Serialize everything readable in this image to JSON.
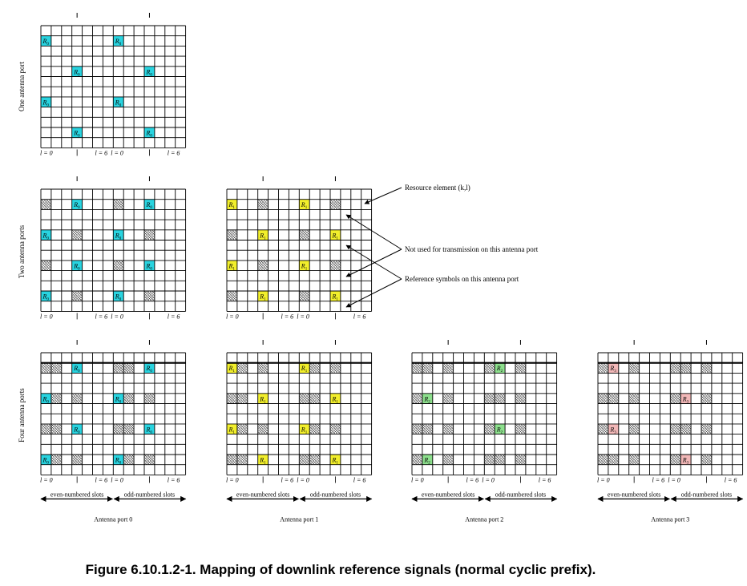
{
  "caption": "Figure 6.10.1.2-1. Mapping of downlink reference signals (normal cyclic prefix).",
  "row_labels": [
    "One antenna port",
    "Two antenna ports",
    "Four antenna ports"
  ],
  "axis_labels": {
    "l0": "l = 0",
    "l6": "l = 6"
  },
  "slot_labels": {
    "even": "even-numbered slots",
    "odd": "odd-numbered slots"
  },
  "port_labels": [
    "Antenna port 0",
    "Antenna port 1",
    "Antenna port 2",
    "Antenna port 3"
  ],
  "annotations": {
    "resource_element": "Resource element (k,l)",
    "not_used": "Not used for transmission on this antenna port",
    "reference_symbols": "Reference symbols on this antenna port"
  },
  "colors": {
    "R0": "#29d4e0",
    "R1": "#f2ef2c",
    "R2": "#8de08d",
    "R3": "#f2b8b8",
    "grid": "#000000"
  },
  "grids": [
    {
      "row": "One antenna port",
      "port": 0,
      "cells": [
        {
          "col": 0,
          "row": 1,
          "type": "R",
          "label": "R0"
        },
        {
          "col": 7,
          "row": 1,
          "type": "R",
          "label": "R0"
        },
        {
          "col": 3,
          "row": 4,
          "type": "R",
          "label": "R0"
        },
        {
          "col": 10,
          "row": 4,
          "type": "R",
          "label": "R0"
        },
        {
          "col": 0,
          "row": 7,
          "type": "R",
          "label": "R0"
        },
        {
          "col": 7,
          "row": 7,
          "type": "R",
          "label": "R0"
        },
        {
          "col": 3,
          "row": 10,
          "type": "R",
          "label": "R0"
        },
        {
          "col": 10,
          "row": 10,
          "type": "R",
          "label": "R0"
        }
      ]
    },
    {
      "row": "Two antenna ports",
      "port": 0,
      "cells": [
        {
          "col": 0,
          "row": 1,
          "type": "X"
        },
        {
          "col": 7,
          "row": 1,
          "type": "X"
        },
        {
          "col": 3,
          "row": 1,
          "type": "R",
          "label": "R0"
        },
        {
          "col": 10,
          "row": 1,
          "type": "R",
          "label": "R0"
        },
        {
          "col": 0,
          "row": 4,
          "type": "R",
          "label": "R0"
        },
        {
          "col": 7,
          "row": 4,
          "type": "R",
          "label": "R0"
        },
        {
          "col": 3,
          "row": 4,
          "type": "X"
        },
        {
          "col": 10,
          "row": 4,
          "type": "X"
        },
        {
          "col": 0,
          "row": 7,
          "type": "X"
        },
        {
          "col": 7,
          "row": 7,
          "type": "X"
        },
        {
          "col": 3,
          "row": 7,
          "type": "R",
          "label": "R0"
        },
        {
          "col": 10,
          "row": 7,
          "type": "R",
          "label": "R0"
        },
        {
          "col": 0,
          "row": 10,
          "type": "R",
          "label": "R0"
        },
        {
          "col": 7,
          "row": 10,
          "type": "R",
          "label": "R0"
        },
        {
          "col": 3,
          "row": 10,
          "type": "X"
        },
        {
          "col": 10,
          "row": 10,
          "type": "X"
        }
      ]
    },
    {
      "row": "Two antenna ports",
      "port": 1,
      "cells": [
        {
          "col": 0,
          "row": 1,
          "type": "R",
          "label": "R1"
        },
        {
          "col": 7,
          "row": 1,
          "type": "R",
          "label": "R1"
        },
        {
          "col": 3,
          "row": 1,
          "type": "X"
        },
        {
          "col": 10,
          "row": 1,
          "type": "X"
        },
        {
          "col": 0,
          "row": 4,
          "type": "X"
        },
        {
          "col": 7,
          "row": 4,
          "type": "X"
        },
        {
          "col": 3,
          "row": 4,
          "type": "R",
          "label": "R1"
        },
        {
          "col": 10,
          "row": 4,
          "type": "R",
          "label": "R1"
        },
        {
          "col": 0,
          "row": 7,
          "type": "R",
          "label": "R1"
        },
        {
          "col": 7,
          "row": 7,
          "type": "R",
          "label": "R1"
        },
        {
          "col": 3,
          "row": 7,
          "type": "X"
        },
        {
          "col": 10,
          "row": 7,
          "type": "X"
        },
        {
          "col": 0,
          "row": 10,
          "type": "X"
        },
        {
          "col": 7,
          "row": 10,
          "type": "X"
        },
        {
          "col": 3,
          "row": 10,
          "type": "R",
          "label": "R1"
        },
        {
          "col": 10,
          "row": 10,
          "type": "R",
          "label": "R1"
        }
      ]
    },
    {
      "row": "Four antenna ports",
      "port": 0,
      "cells": [
        {
          "col": 0,
          "row": 1,
          "type": "X"
        },
        {
          "col": 1,
          "row": 1,
          "type": "X"
        },
        {
          "col": 3,
          "row": 1,
          "type": "R",
          "label": "R0"
        },
        {
          "col": 7,
          "row": 1,
          "type": "X"
        },
        {
          "col": 8,
          "row": 1,
          "type": "X"
        },
        {
          "col": 10,
          "row": 1,
          "type": "R",
          "label": "R0"
        },
        {
          "col": 0,
          "row": 4,
          "type": "R",
          "label": "R0"
        },
        {
          "col": 1,
          "row": 4,
          "type": "X"
        },
        {
          "col": 3,
          "row": 4,
          "type": "X"
        },
        {
          "col": 7,
          "row": 4,
          "type": "R",
          "label": "R0"
        },
        {
          "col": 8,
          "row": 4,
          "type": "X"
        },
        {
          "col": 10,
          "row": 4,
          "type": "X"
        },
        {
          "col": 0,
          "row": 7,
          "type": "X"
        },
        {
          "col": 1,
          "row": 7,
          "type": "X"
        },
        {
          "col": 3,
          "row": 7,
          "type": "R",
          "label": "R0"
        },
        {
          "col": 7,
          "row": 7,
          "type": "X"
        },
        {
          "col": 8,
          "row": 7,
          "type": "X"
        },
        {
          "col": 10,
          "row": 7,
          "type": "R",
          "label": "R0"
        },
        {
          "col": 0,
          "row": 10,
          "type": "R",
          "label": "R0"
        },
        {
          "col": 1,
          "row": 10,
          "type": "X"
        },
        {
          "col": 3,
          "row": 10,
          "type": "X"
        },
        {
          "col": 7,
          "row": 10,
          "type": "R",
          "label": "R0"
        },
        {
          "col": 8,
          "row": 10,
          "type": "X"
        },
        {
          "col": 10,
          "row": 10,
          "type": "X"
        }
      ]
    },
    {
      "row": "Four antenna ports",
      "port": 1,
      "cells": [
        {
          "col": 0,
          "row": 1,
          "type": "R",
          "label": "R1"
        },
        {
          "col": 1,
          "row": 1,
          "type": "X"
        },
        {
          "col": 3,
          "row": 1,
          "type": "X"
        },
        {
          "col": 7,
          "row": 1,
          "type": "R",
          "label": "R1"
        },
        {
          "col": 8,
          "row": 1,
          "type": "X"
        },
        {
          "col": 10,
          "row": 1,
          "type": "X"
        },
        {
          "col": 0,
          "row": 4,
          "type": "X"
        },
        {
          "col": 1,
          "row": 4,
          "type": "X"
        },
        {
          "col": 3,
          "row": 4,
          "type": "R",
          "label": "R1"
        },
        {
          "col": 7,
          "row": 4,
          "type": "X"
        },
        {
          "col": 8,
          "row": 4,
          "type": "X"
        },
        {
          "col": 10,
          "row": 4,
          "type": "R",
          "label": "R1"
        },
        {
          "col": 0,
          "row": 7,
          "type": "R",
          "label": "R1"
        },
        {
          "col": 1,
          "row": 7,
          "type": "X"
        },
        {
          "col": 3,
          "row": 7,
          "type": "X"
        },
        {
          "col": 7,
          "row": 7,
          "type": "R",
          "label": "R1"
        },
        {
          "col": 8,
          "row": 7,
          "type": "X"
        },
        {
          "col": 10,
          "row": 7,
          "type": "X"
        },
        {
          "col": 0,
          "row": 10,
          "type": "X"
        },
        {
          "col": 1,
          "row": 10,
          "type": "X"
        },
        {
          "col": 3,
          "row": 10,
          "type": "R",
          "label": "R1"
        },
        {
          "col": 7,
          "row": 10,
          "type": "X"
        },
        {
          "col": 8,
          "row": 10,
          "type": "X"
        },
        {
          "col": 10,
          "row": 10,
          "type": "R",
          "label": "R1"
        }
      ]
    },
    {
      "row": "Four antenna ports",
      "port": 2,
      "cells": [
        {
          "col": 0,
          "row": 1,
          "type": "X"
        },
        {
          "col": 1,
          "row": 1,
          "type": "X"
        },
        {
          "col": 3,
          "row": 1,
          "type": "X"
        },
        {
          "col": 7,
          "row": 1,
          "type": "X"
        },
        {
          "col": 8,
          "row": 1,
          "type": "R",
          "label": "R2"
        },
        {
          "col": 10,
          "row": 1,
          "type": "X"
        },
        {
          "col": 0,
          "row": 4,
          "type": "X"
        },
        {
          "col": 1,
          "row": 4,
          "type": "R",
          "label": "R2"
        },
        {
          "col": 3,
          "row": 4,
          "type": "X"
        },
        {
          "col": 7,
          "row": 4,
          "type": "X"
        },
        {
          "col": 8,
          "row": 4,
          "type": "X"
        },
        {
          "col": 10,
          "row": 4,
          "type": "X"
        },
        {
          "col": 0,
          "row": 7,
          "type": "X"
        },
        {
          "col": 1,
          "row": 7,
          "type": "X"
        },
        {
          "col": 3,
          "row": 7,
          "type": "X"
        },
        {
          "col": 7,
          "row": 7,
          "type": "X"
        },
        {
          "col": 8,
          "row": 7,
          "type": "R",
          "label": "R2"
        },
        {
          "col": 10,
          "row": 7,
          "type": "X"
        },
        {
          "col": 0,
          "row": 10,
          "type": "X"
        },
        {
          "col": 1,
          "row": 10,
          "type": "R",
          "label": "R2"
        },
        {
          "col": 3,
          "row": 10,
          "type": "X"
        },
        {
          "col": 7,
          "row": 10,
          "type": "X"
        },
        {
          "col": 8,
          "row": 10,
          "type": "X"
        },
        {
          "col": 10,
          "row": 10,
          "type": "X"
        }
      ]
    },
    {
      "row": "Four antenna ports",
      "port": 3,
      "cells": [
        {
          "col": 0,
          "row": 1,
          "type": "X"
        },
        {
          "col": 1,
          "row": 1,
          "type": "R",
          "label": "R3"
        },
        {
          "col": 3,
          "row": 1,
          "type": "X"
        },
        {
          "col": 7,
          "row": 1,
          "type": "X"
        },
        {
          "col": 8,
          "row": 1,
          "type": "X"
        },
        {
          "col": 10,
          "row": 1,
          "type": "X"
        },
        {
          "col": 0,
          "row": 4,
          "type": "X"
        },
        {
          "col": 1,
          "row": 4,
          "type": "X"
        },
        {
          "col": 3,
          "row": 4,
          "type": "X"
        },
        {
          "col": 7,
          "row": 4,
          "type": "X"
        },
        {
          "col": 8,
          "row": 4,
          "type": "R",
          "label": "R3"
        },
        {
          "col": 10,
          "row": 4,
          "type": "X"
        },
        {
          "col": 0,
          "row": 7,
          "type": "X"
        },
        {
          "col": 1,
          "row": 7,
          "type": "R",
          "label": "R3"
        },
        {
          "col": 3,
          "row": 7,
          "type": "X"
        },
        {
          "col": 7,
          "row": 7,
          "type": "X"
        },
        {
          "col": 8,
          "row": 7,
          "type": "X"
        },
        {
          "col": 10,
          "row": 7,
          "type": "X"
        },
        {
          "col": 0,
          "row": 10,
          "type": "X"
        },
        {
          "col": 1,
          "row": 10,
          "type": "X"
        },
        {
          "col": 3,
          "row": 10,
          "type": "X"
        },
        {
          "col": 7,
          "row": 10,
          "type": "X"
        },
        {
          "col": 8,
          "row": 10,
          "type": "R",
          "label": "R3"
        },
        {
          "col": 10,
          "row": 10,
          "type": "X"
        }
      ]
    }
  ]
}
